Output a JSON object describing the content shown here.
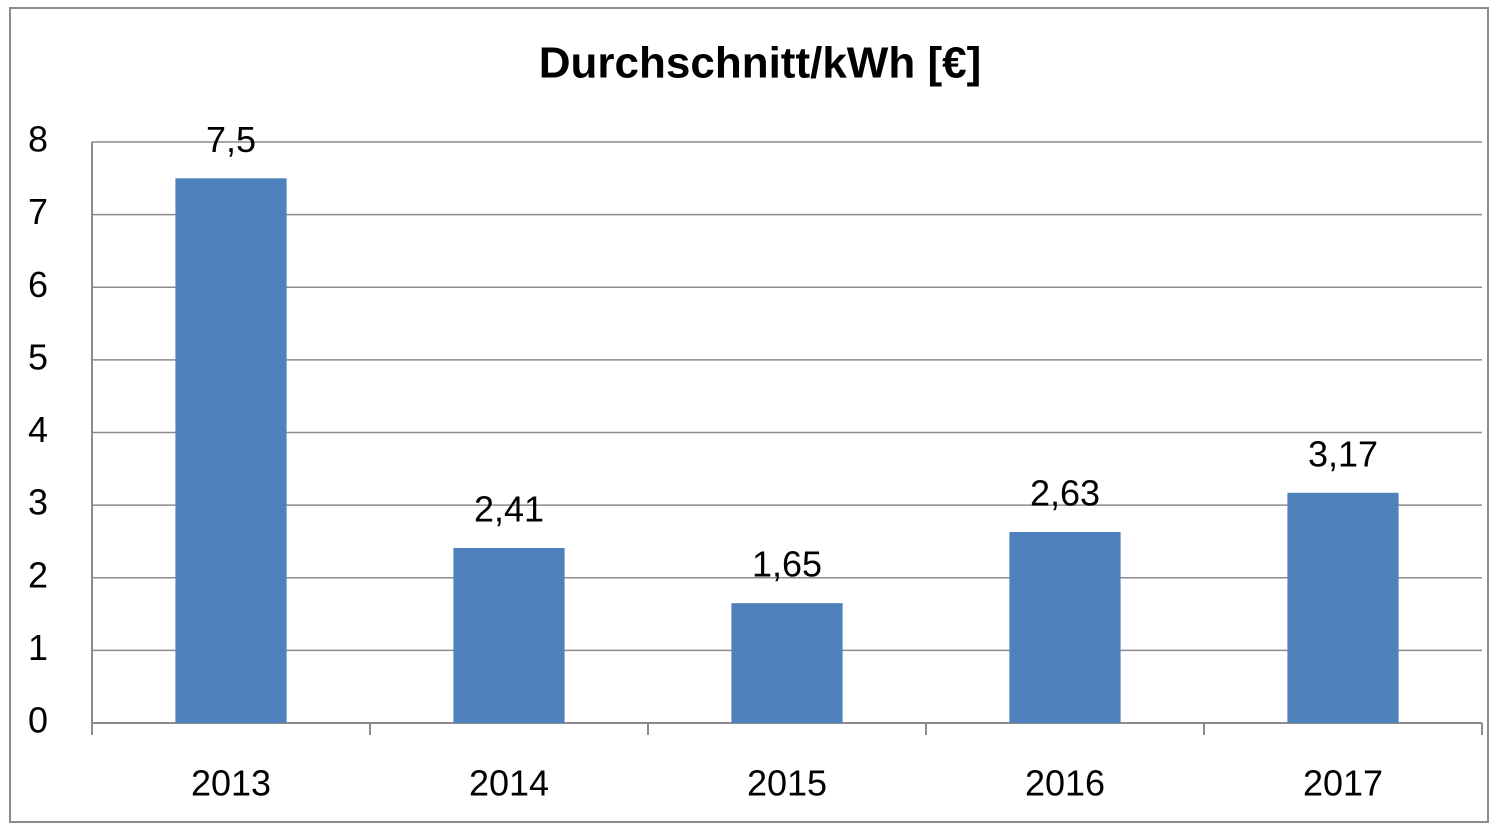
{
  "chart_data": {
    "type": "bar",
    "title": "Durchschnitt/kWh [€]",
    "categories": [
      "2013",
      "2014",
      "2015",
      "2016",
      "2017"
    ],
    "values": [
      7.5,
      2.41,
      1.65,
      2.63,
      3.17
    ],
    "value_labels": [
      "7,5",
      "2,41",
      "1,65",
      "2,63",
      "3,17"
    ],
    "color": "#4f81bd",
    "ylim": [
      0,
      8
    ],
    "yticks": [
      0,
      1,
      2,
      3,
      4,
      5,
      6,
      7,
      8
    ],
    "grid": true
  }
}
